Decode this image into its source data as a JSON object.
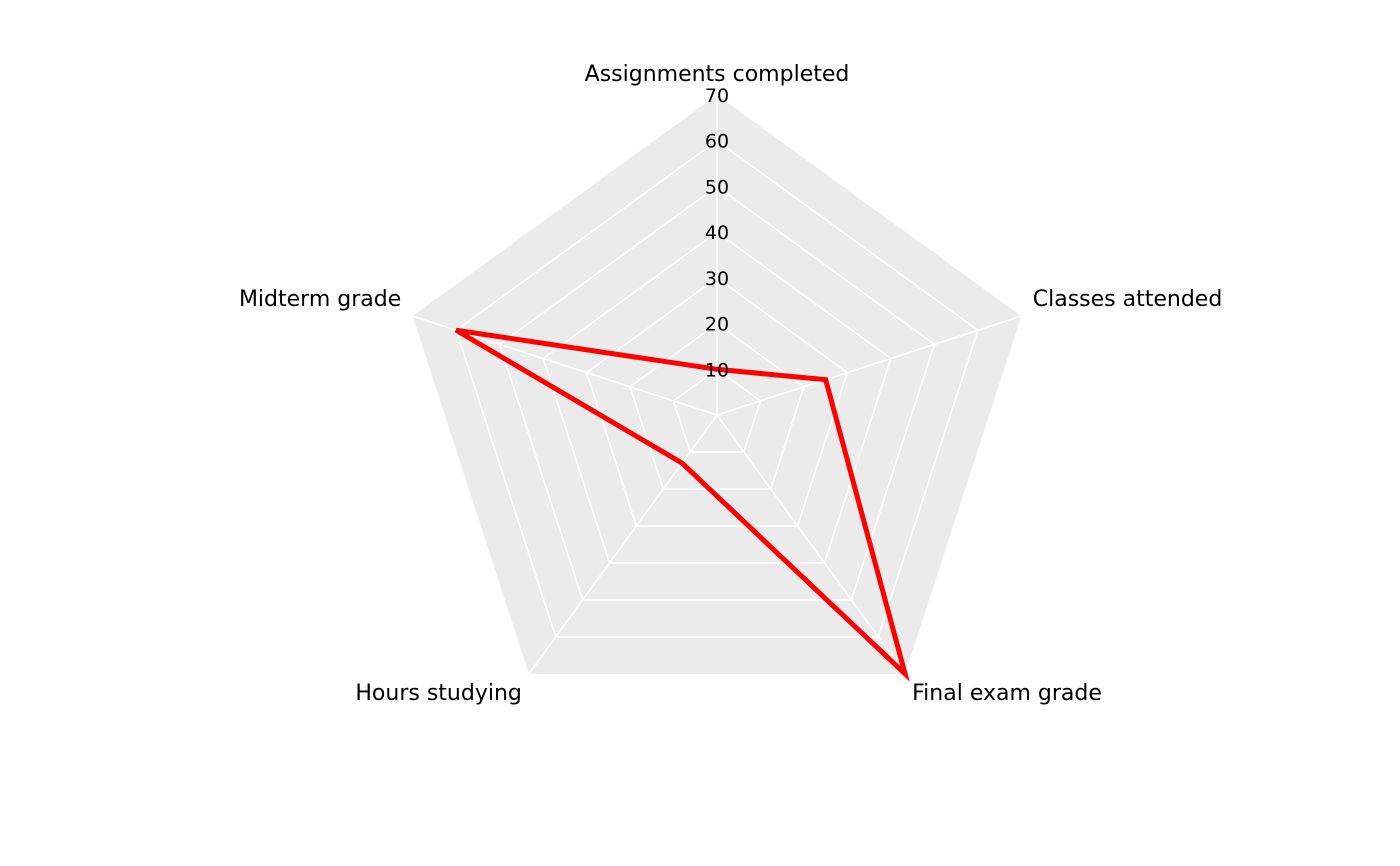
{
  "chart_data": {
    "type": "radar",
    "axes": [
      "Assignments completed",
      "Classes attended",
      "Final exam grade",
      "Hours studying",
      "Midterm grade"
    ],
    "series": [
      {
        "values": [
          10,
          25,
          70,
          13,
          60
        ],
        "color": "#ff0000"
      }
    ],
    "rlim": [
      0,
      70
    ],
    "ticks": [
      10,
      20,
      30,
      40,
      50,
      60,
      70
    ],
    "tick_labels": [
      "10",
      "20",
      "30",
      "40",
      "50",
      "60",
      "70"
    ],
    "panel_color": "#ebebeb",
    "grid_color": "#ffffff",
    "grid": true,
    "legend": "none"
  }
}
